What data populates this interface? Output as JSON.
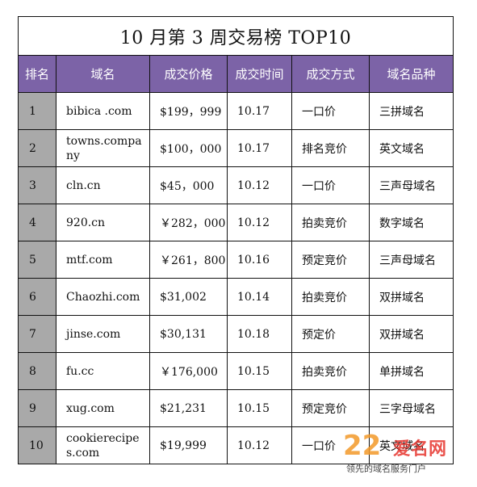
{
  "title": "10 月第 3 周交易榜 TOP10",
  "headers": [
    "排名",
    "域名",
    "成交价格",
    "成交时间",
    "成交方式",
    "域名品种"
  ],
  "rows": [
    {
      "rank": "1",
      "domain": "bibica .com",
      "price": "$199，999",
      "date": "10.17",
      "method": "一口价",
      "kind": "三拼域名"
    },
    {
      "rank": "2",
      "domain": "towns.company",
      "price": "$100，000",
      "date": "10.17",
      "method": "排名竞价",
      "kind": "英文域名"
    },
    {
      "rank": "3",
      "domain": "cln.cn",
      "price": "$45，000",
      "date": "10.12",
      "method": "一口价",
      "kind": "三声母域名"
    },
    {
      "rank": "4",
      "domain": "920.cn",
      "price": "￥282，000",
      "date": "10.12",
      "method": "拍卖竞价",
      "kind": "数字域名"
    },
    {
      "rank": "5",
      "domain": "mtf.com",
      "price": "￥261，800",
      "date": "10.16",
      "method": "预定竞价",
      "kind": "三声母域名"
    },
    {
      "rank": "6",
      "domain": "Chaozhi.com",
      "price": "$31,002",
      "date": "10.14",
      "method": "拍卖竞价",
      "kind": "双拼域名"
    },
    {
      "rank": "7",
      "domain": "jinse.com",
      "price": "$30,131",
      "date": "10.18",
      "method": "预定价",
      "kind": "双拼域名"
    },
    {
      "rank": "8",
      "domain": "fu.cc",
      "price": "￥176,000",
      "date": "10.15",
      "method": "拍卖竞价",
      "kind": "单拼域名"
    },
    {
      "rank": "9",
      "domain": "xug.com",
      "price": "$21,231",
      "date": "10.15",
      "method": "预定竞价",
      "kind": "三字母域名"
    },
    {
      "rank": "10",
      "domain": "cookierecipes.com",
      "price": "$19,999",
      "date": "10.12",
      "method": "一口价",
      "kind": "英文域名"
    }
  ],
  "watermark": {
    "brand_num": "22",
    "brand_name": "爱名网",
    "tagline": "领先的域名服务门户"
  },
  "colors": {
    "header_bg": "#7c63a7",
    "rank_bg": "#a9a9a9",
    "wm_orange": "#f39a2a",
    "wm_red": "#e7362f"
  }
}
